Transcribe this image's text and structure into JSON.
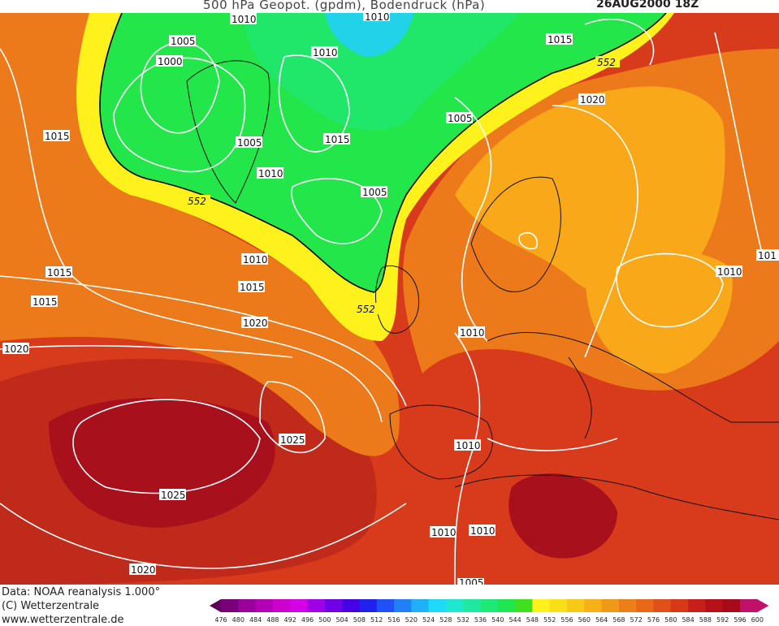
{
  "header": {
    "title": "500 hPa Geopot. (gpdm), Bodendruck (hPa)",
    "datetime": "26AUG2000 18Z"
  },
  "credits": {
    "data_source": "Data: NOAA reanalysis 1.000°",
    "copyright": "(C) Wetterzentrale",
    "website": "www.wetterzentrale.de"
  },
  "colors": {
    "low_green": "#22e64a",
    "cyan_core": "#21d2e8",
    "yellow": "#fff21c",
    "orange": "#f8a818",
    "deep_orange": "#ec7a1a",
    "red": "#d2321c",
    "dark_red": "#a8101c",
    "isobar": "#ffffff",
    "contour_552": "#000000"
  },
  "legend": {
    "values": [
      476,
      480,
      484,
      488,
      492,
      496,
      500,
      504,
      508,
      512,
      516,
      520,
      524,
      528,
      532,
      536,
      540,
      544,
      548,
      552,
      556,
      560,
      564,
      568,
      572,
      576,
      580,
      584,
      588,
      592,
      596,
      600
    ],
    "colors": [
      "#5a005a",
      "#7a007a",
      "#9a009a",
      "#b400b4",
      "#cc00cc",
      "#d400e6",
      "#a000e8",
      "#7000e8",
      "#4600e8",
      "#2020f0",
      "#2050f8",
      "#2080f8",
      "#20b0f8",
      "#20d8f8",
      "#20e8d0",
      "#20e8a0",
      "#20e878",
      "#20e650",
      "#40e020",
      "#fff21c",
      "#f8e018",
      "#f8c818",
      "#f8b018",
      "#f09818",
      "#ec8018",
      "#e86818",
      "#e05018",
      "#d83818",
      "#c82018",
      "#b81018",
      "#a80a1a",
      "#c0106a"
    ]
  },
  "isobar_labels": [
    {
      "text": "1010"
    },
    {
      "text": "1010"
    },
    {
      "text": "1005"
    },
    {
      "text": "1000"
    },
    {
      "text": "1010"
    },
    {
      "text": "1015"
    },
    {
      "text": "1005"
    },
    {
      "text": "1020"
    },
    {
      "text": "1015"
    },
    {
      "text": "1005"
    },
    {
      "text": "1015"
    },
    {
      "text": "1010"
    },
    {
      "text": "1005"
    },
    {
      "text": "1010"
    },
    {
      "text": "1015"
    },
    {
      "text": "1015"
    },
    {
      "text": "1020"
    },
    {
      "text": "1020"
    },
    {
      "text": "1015"
    },
    {
      "text": "1010"
    },
    {
      "text": "1010"
    },
    {
      "text": "1025"
    },
    {
      "text": "1025"
    },
    {
      "text": "1010"
    },
    {
      "text": "1010"
    },
    {
      "text": "1010"
    },
    {
      "text": "1020"
    },
    {
      "text": "1005"
    },
    {
      "text": "101"
    }
  ],
  "height_labels": [
    {
      "text": "552"
    },
    {
      "text": "552"
    },
    {
      "text": "552"
    }
  ]
}
